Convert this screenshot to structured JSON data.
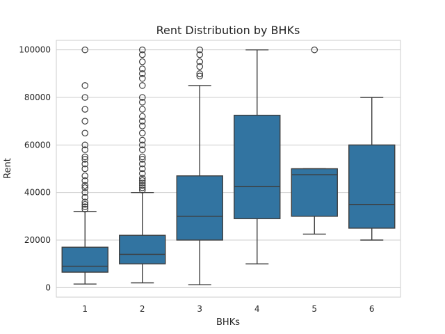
{
  "chart_data": {
    "type": "box",
    "title": "Rent Distribution by BHKs",
    "xlabel": "BHKs",
    "ylabel": "Rent",
    "categories": [
      "1",
      "2",
      "3",
      "4",
      "5",
      "6"
    ],
    "ylim": [
      -4000,
      104000
    ],
    "yticks": [
      0,
      20000,
      40000,
      60000,
      80000,
      100000
    ],
    "grid": "horizontal",
    "colors": {
      "box_fill": "#3274a1",
      "line": "#3d3d3d",
      "grid": "#cccccc",
      "spine": "#cccccc"
    },
    "boxes": [
      {
        "category": "1",
        "whisker_low": 1500,
        "q1": 6500,
        "median": 9000,
        "q3": 17000,
        "whisker_high": 32000,
        "outliers": [
          33000,
          34000,
          35000,
          36000,
          38000,
          40000,
          42000,
          43000,
          45000,
          47000,
          50000,
          52000,
          54000,
          55000,
          58000,
          60000,
          65000,
          70000,
          75000,
          80000,
          85000,
          100000
        ]
      },
      {
        "category": "2",
        "whisker_low": 2000,
        "q1": 10000,
        "median": 14000,
        "q3": 22000,
        "whisker_high": 40000,
        "outliers": [
          41000,
          42000,
          43000,
          44000,
          45000,
          46000,
          48000,
          50000,
          52000,
          54000,
          55000,
          58000,
          60000,
          62000,
          65000,
          68000,
          70000,
          72000,
          75000,
          78000,
          80000,
          85000,
          88000,
          90000,
          92000,
          95000,
          98000,
          100000
        ]
      },
      {
        "category": "3",
        "whisker_low": 1200,
        "q1": 20000,
        "median": 30000,
        "q3": 47000,
        "whisker_high": 85000,
        "outliers": [
          89000,
          90000,
          93000,
          95000,
          98000,
          100000
        ]
      },
      {
        "category": "4",
        "whisker_low": 10000,
        "q1": 29000,
        "median": 42500,
        "q3": 72500,
        "whisker_high": 100000,
        "outliers": []
      },
      {
        "category": "5",
        "whisker_low": 22500,
        "q1": 30000,
        "median": 47500,
        "q3": 50000,
        "whisker_high": 50000,
        "outliers": [
          100000
        ]
      },
      {
        "category": "6",
        "whisker_low": 20000,
        "q1": 25000,
        "median": 35000,
        "q3": 60000,
        "whisker_high": 80000,
        "outliers": []
      }
    ]
  }
}
